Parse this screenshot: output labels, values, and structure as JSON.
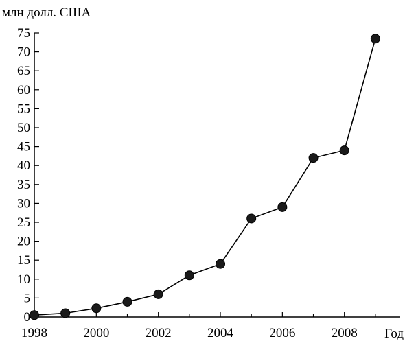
{
  "chart_data": {
    "type": "line",
    "ylabel": "млн долл. США",
    "xlabel": "Год",
    "x": [
      1998,
      1999,
      2000,
      2001,
      2002,
      2003,
      2004,
      2005,
      2006,
      2007,
      2008,
      2009
    ],
    "series": [
      {
        "values": [
          0.5,
          1,
          2.3,
          4,
          6,
          11,
          14,
          26,
          29,
          42,
          44,
          73.5
        ]
      }
    ],
    "xlim": [
      1998,
      2009.8
    ],
    "ylim": [
      0,
      75
    ],
    "xticks": [
      1998,
      2000,
      2002,
      2004,
      2006,
      2008
    ],
    "yticks": [
      0,
      5,
      10,
      15,
      20,
      25,
      30,
      35,
      40,
      45,
      50,
      55,
      60,
      65,
      70,
      75
    ],
    "grid": false,
    "legend": "none",
    "colors": {
      "line": "#000000",
      "marker": "#1a1a1a"
    }
  }
}
